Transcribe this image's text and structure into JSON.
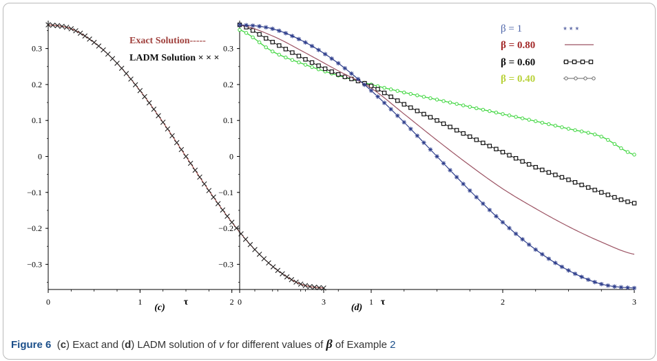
{
  "caption": {
    "figure_label": "Figure 6",
    "part_c_open": "(",
    "part_c": "c",
    "part_c_close": ")",
    "text_1": "Exact and (",
    "part_d": "d",
    "text_2": ") LADM solution of ",
    "var": "v",
    "text_3": " for different values of ",
    "beta": "β",
    "text_4": " of Example ",
    "example_ref": "2"
  },
  "colors": {
    "exact": "#a0413d",
    "ladm_markers": "#222222",
    "beta_1": "#2e3e8c",
    "beta_080": "#9b5262",
    "beta_060": "#111111",
    "beta_040": "#3dd63d",
    "label_beta_1": "#4a62a8",
    "label_beta_080": "#a32a2a",
    "label_beta_060": "#111111",
    "label_beta_040": "#b9d23a",
    "axes": "#000000"
  },
  "chart_data": [
    {
      "type": "line",
      "panel_label": "(c)",
      "xlabel": "τ",
      "ylabel": "",
      "xlim": [
        0,
        3
      ],
      "ylim": [
        -0.37,
        0.37
      ],
      "x_ticks": [
        "0",
        "1",
        "2",
        "3"
      ],
      "y_ticks": [
        "0.3",
        "0.2",
        "0.1",
        "0",
        "−0.1",
        "−0.2",
        "−0.3"
      ],
      "legend_position": "top-center",
      "series": [
        {
          "name": "Exact Solution-----",
          "style": "solid",
          "x": [
            0,
            0.25,
            0.5,
            0.75,
            1.0,
            1.25,
            1.5,
            1.75,
            2.0,
            2.25,
            2.5,
            2.75,
            3.0
          ],
          "y": [
            0.366,
            0.355,
            0.317,
            0.259,
            0.183,
            0.095,
            0.0,
            -0.095,
            -0.183,
            -0.259,
            -0.317,
            -0.355,
            -0.366
          ]
        },
        {
          "name": "LADM Solution × × ×",
          "style": "x-markers",
          "x": [
            0,
            0.25,
            0.5,
            0.75,
            1.0,
            1.25,
            1.5,
            1.75,
            2.0,
            2.25,
            2.5,
            2.75,
            3.0
          ],
          "y": [
            0.366,
            0.355,
            0.317,
            0.259,
            0.183,
            0.095,
            0.0,
            -0.095,
            -0.183,
            -0.259,
            -0.317,
            -0.355,
            -0.366
          ]
        }
      ]
    },
    {
      "type": "line",
      "panel_label": "(d)",
      "xlabel": "τ",
      "ylabel": "",
      "xlim": [
        0,
        3
      ],
      "ylim": [
        -0.37,
        0.37
      ],
      "x_ticks": [
        "0",
        "1",
        "2",
        "3"
      ],
      "y_ticks": [
        "0.3",
        "0.2",
        "0.1",
        "0",
        "−0.1",
        "−0.2",
        "−0.3"
      ],
      "legend_position": "top-right",
      "series": [
        {
          "name": "β = 1",
          "legend_marker": "* * *",
          "style": "star-markers",
          "x": [
            0,
            0.25,
            0.5,
            0.75,
            1.0,
            1.25,
            1.5,
            1.75,
            2.0,
            2.25,
            2.5,
            2.75,
            3.0
          ],
          "y": [
            0.366,
            0.355,
            0.317,
            0.259,
            0.183,
            0.095,
            0.0,
            -0.095,
            -0.183,
            -0.259,
            -0.317,
            -0.355,
            -0.366
          ]
        },
        {
          "name": "β = 0.80",
          "style": "solid",
          "x": [
            0,
            0.25,
            0.5,
            0.75,
            1.0,
            1.25,
            1.5,
            1.75,
            2.0,
            2.25,
            2.5,
            2.75,
            3.0
          ],
          "y": [
            0.366,
            0.335,
            0.288,
            0.238,
            0.19,
            0.118,
            0.045,
            -0.025,
            -0.09,
            -0.145,
            -0.195,
            -0.238,
            -0.272
          ]
        },
        {
          "name": "β = 0.60",
          "style": "square-markers",
          "x": [
            0,
            0.25,
            0.5,
            0.75,
            1.0,
            1.25,
            1.5,
            1.75,
            2.0,
            2.25,
            2.5,
            2.75,
            3.0
          ],
          "y": [
            0.366,
            0.318,
            0.27,
            0.228,
            0.196,
            0.145,
            0.1,
            0.055,
            0.012,
            -0.03,
            -0.065,
            -0.1,
            -0.13
          ]
        },
        {
          "name": "β = 0.40",
          "style": "circle-markers",
          "x": [
            0,
            0.25,
            0.5,
            0.75,
            1.0,
            1.25,
            1.5,
            1.75,
            2.0,
            2.25,
            2.5,
            2.75,
            3.0
          ],
          "y": [
            0.352,
            0.292,
            0.255,
            0.225,
            0.2,
            0.178,
            0.158,
            0.138,
            0.118,
            0.098,
            0.077,
            0.055,
            0.005
          ]
        }
      ]
    }
  ]
}
